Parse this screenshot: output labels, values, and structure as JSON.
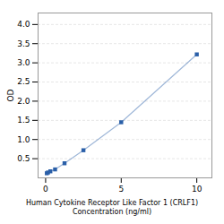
{
  "chart_data": {
    "type": "line",
    "xlabel": "Human Cytokine Receptor Like Factor 1 (CRLF1)\nConcentration (ng/ml)",
    "ylabel": "OD",
    "x": [
      0.078,
      0.156,
      0.313,
      0.625,
      1.25,
      2.5,
      5.0,
      10.0
    ],
    "values": [
      0.12,
      0.14,
      0.17,
      0.22,
      0.38,
      0.72,
      1.45,
      3.22
    ],
    "color": "#2a5fa8",
    "marker": "square",
    "xlim": [
      -0.5,
      11.0
    ],
    "ylim": [
      0,
      4.3
    ],
    "xticks": [
      0,
      5,
      10
    ],
    "yticks": [
      0.5,
      {
        "value": 1.0,
        "label": "1.0"
      },
      1.5,
      {
        "value": 2.0,
        "label": "2.0"
      },
      2.5,
      {
        "value": 3.0,
        "label": "3.0"
      },
      3.5,
      {
        "value": 4.0,
        "label": "4.0"
      }
    ],
    "grid": true
  }
}
